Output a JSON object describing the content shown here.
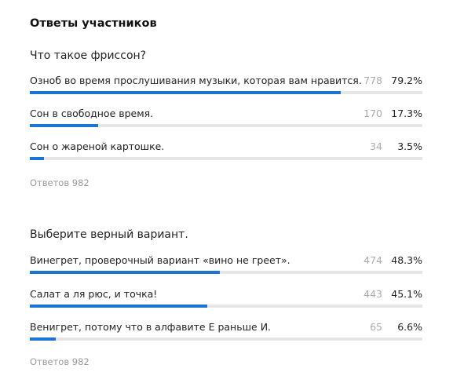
{
  "page": {
    "title": "Ответы участников"
  },
  "colors": {
    "bar_fill": "#1a76d2",
    "bar_track": "#e6e6e6",
    "count_text": "#aaaaaa",
    "muted_text": "#999999"
  },
  "questions": [
    {
      "text": "Что такое фриссон?",
      "options": [
        {
          "text": "Озноб во время прослушивания музыки, которая вам нравится.",
          "count": "778",
          "percent": "79.2%",
          "fraction": 0.792
        },
        {
          "text": "Сон в свободное время.",
          "count": "170",
          "percent": "17.3%",
          "fraction": 0.173
        },
        {
          "text": "Сон о жареной картошке.",
          "count": "34",
          "percent": "3.5%",
          "fraction": 0.035
        }
      ],
      "total": "Ответов 982"
    },
    {
      "text": "Выберите верный вариант.",
      "options": [
        {
          "text": "Винегрет, проверочный вариант «вино не греет».",
          "count": "474",
          "percent": "48.3%",
          "fraction": 0.483
        },
        {
          "text": "Салат а ля рюс, и точка!",
          "count": "443",
          "percent": "45.1%",
          "fraction": 0.451
        },
        {
          "text": "Венигрет, потому что в алфавите Е раньше И.",
          "count": "65",
          "percent": "6.6%",
          "fraction": 0.066
        }
      ],
      "total": "Ответов 982"
    }
  ]
}
